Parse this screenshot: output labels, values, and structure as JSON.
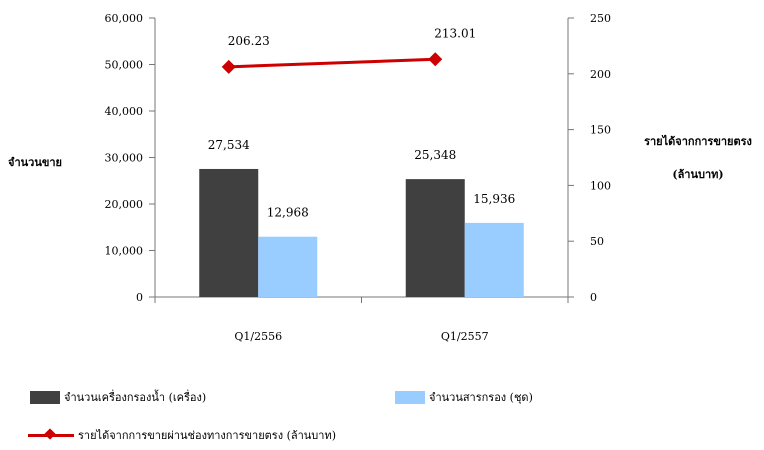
{
  "chart_data": {
    "type": "bar",
    "categories": [
      "Q1/2556",
      "Q1/2557"
    ],
    "series": [
      {
        "name": "จำนวนเครื่องกรองน้ำ (เครื่อง)",
        "values": [
          27534,
          25348
        ],
        "labels": [
          "27,534",
          "25,348"
        ],
        "color": "#404040",
        "axis": "left"
      },
      {
        "name": "จำนวนสารกรอง (ชุด)",
        "values": [
          12968,
          15936
        ],
        "labels": [
          "12,968",
          "15,936"
        ],
        "color": "#99ccff",
        "axis": "left"
      },
      {
        "name": "รายได้จากการขายผ่านช่องทางการขายตรง (ล้านบาท)",
        "type": "line",
        "values": [
          206.23,
          213.01
        ],
        "labels": [
          "206.23",
          "213.01"
        ],
        "color": "#cc0000",
        "axis": "right"
      }
    ],
    "ylabel": "จำนวนขาย",
    "y2label_line1": "รายได้จากการขายตรง",
    "y2label_line2": "(ล้านบาท)",
    "ylim": [
      0,
      60000
    ],
    "yticks": [
      0,
      10000,
      20000,
      30000,
      40000,
      50000,
      60000
    ],
    "ytick_labels": [
      "0",
      "10,000",
      "20,000",
      "30,000",
      "40,000",
      "50,000",
      "60,000"
    ],
    "y2lim": [
      0,
      250
    ],
    "y2ticks": [
      0,
      50,
      100,
      150,
      200,
      250
    ],
    "y2tick_labels": [
      "0",
      "50",
      "100",
      "150",
      "200",
      "250"
    ],
    "grid": false,
    "legend_position": "bottom"
  }
}
